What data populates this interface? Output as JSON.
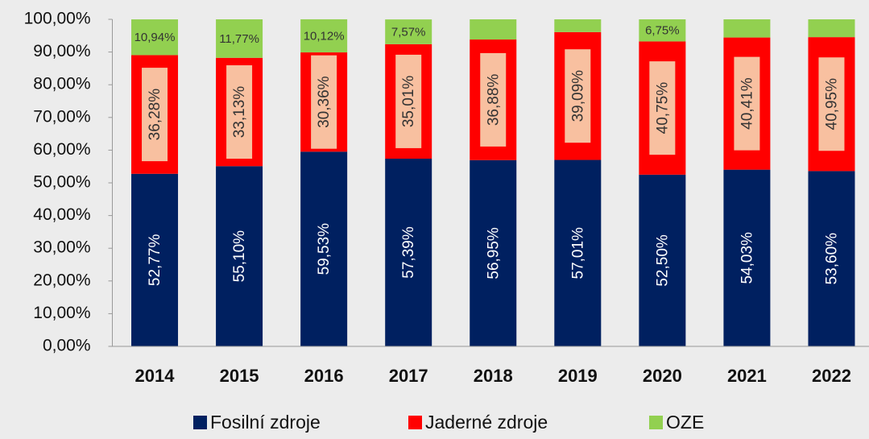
{
  "chart_data": {
    "type": "stacked_bar",
    "categories": [
      "2014",
      "2015",
      "2016",
      "2017",
      "2018",
      "2019",
      "2020",
      "2021",
      "2022"
    ],
    "series": [
      {
        "name": "Fosilní zdroje",
        "color": "#002060",
        "values": [
          52.77,
          55.1,
          59.53,
          57.39,
          56.95,
          57.01,
          52.5,
          54.03,
          53.6
        ],
        "value_labels": [
          "52,77%",
          "55,10%",
          "59,53%",
          "57,39%",
          "56,95%",
          "57,01%",
          "52,50%",
          "54,03%",
          "53,60%"
        ]
      },
      {
        "name": "Jaderné zdroje",
        "color": "#ff0000",
        "values": [
          36.28,
          33.13,
          30.36,
          35.01,
          36.88,
          39.09,
          40.75,
          40.41,
          40.95
        ],
        "value_labels": [
          "36,28%",
          "33,13%",
          "30,36%",
          "35,01%",
          "36,88%",
          "39,09%",
          "40,75%",
          "40,41%",
          "40,95%"
        ]
      },
      {
        "name": "OZE",
        "color": "#92d050",
        "values": [
          10.94,
          11.77,
          10.12,
          7.57,
          6.17,
          3.9,
          6.75,
          5.56,
          5.45
        ],
        "value_labels": [
          "10,94%",
          "11,77%",
          "10,12%",
          "7,57%",
          null,
          null,
          "6,75%",
          null,
          null
        ]
      }
    ],
    "ylim": [
      0,
      100
    ],
    "yticks": [
      {
        "value": 0,
        "label": "0,00%"
      },
      {
        "value": 10,
        "label": "10,00%"
      },
      {
        "value": 20,
        "label": "20,00%"
      },
      {
        "value": 30,
        "label": "30,00%"
      },
      {
        "value": 40,
        "label": "40,00%"
      },
      {
        "value": 50,
        "label": "50,00%"
      },
      {
        "value": 60,
        "label": "60,00%"
      },
      {
        "value": 70,
        "label": "70,00%"
      },
      {
        "value": 80,
        "label": "80,00%"
      },
      {
        "value": 90,
        "label": "90,00%"
      },
      {
        "value": 100,
        "label": "100,00%"
      }
    ],
    "legend": "bottom"
  }
}
